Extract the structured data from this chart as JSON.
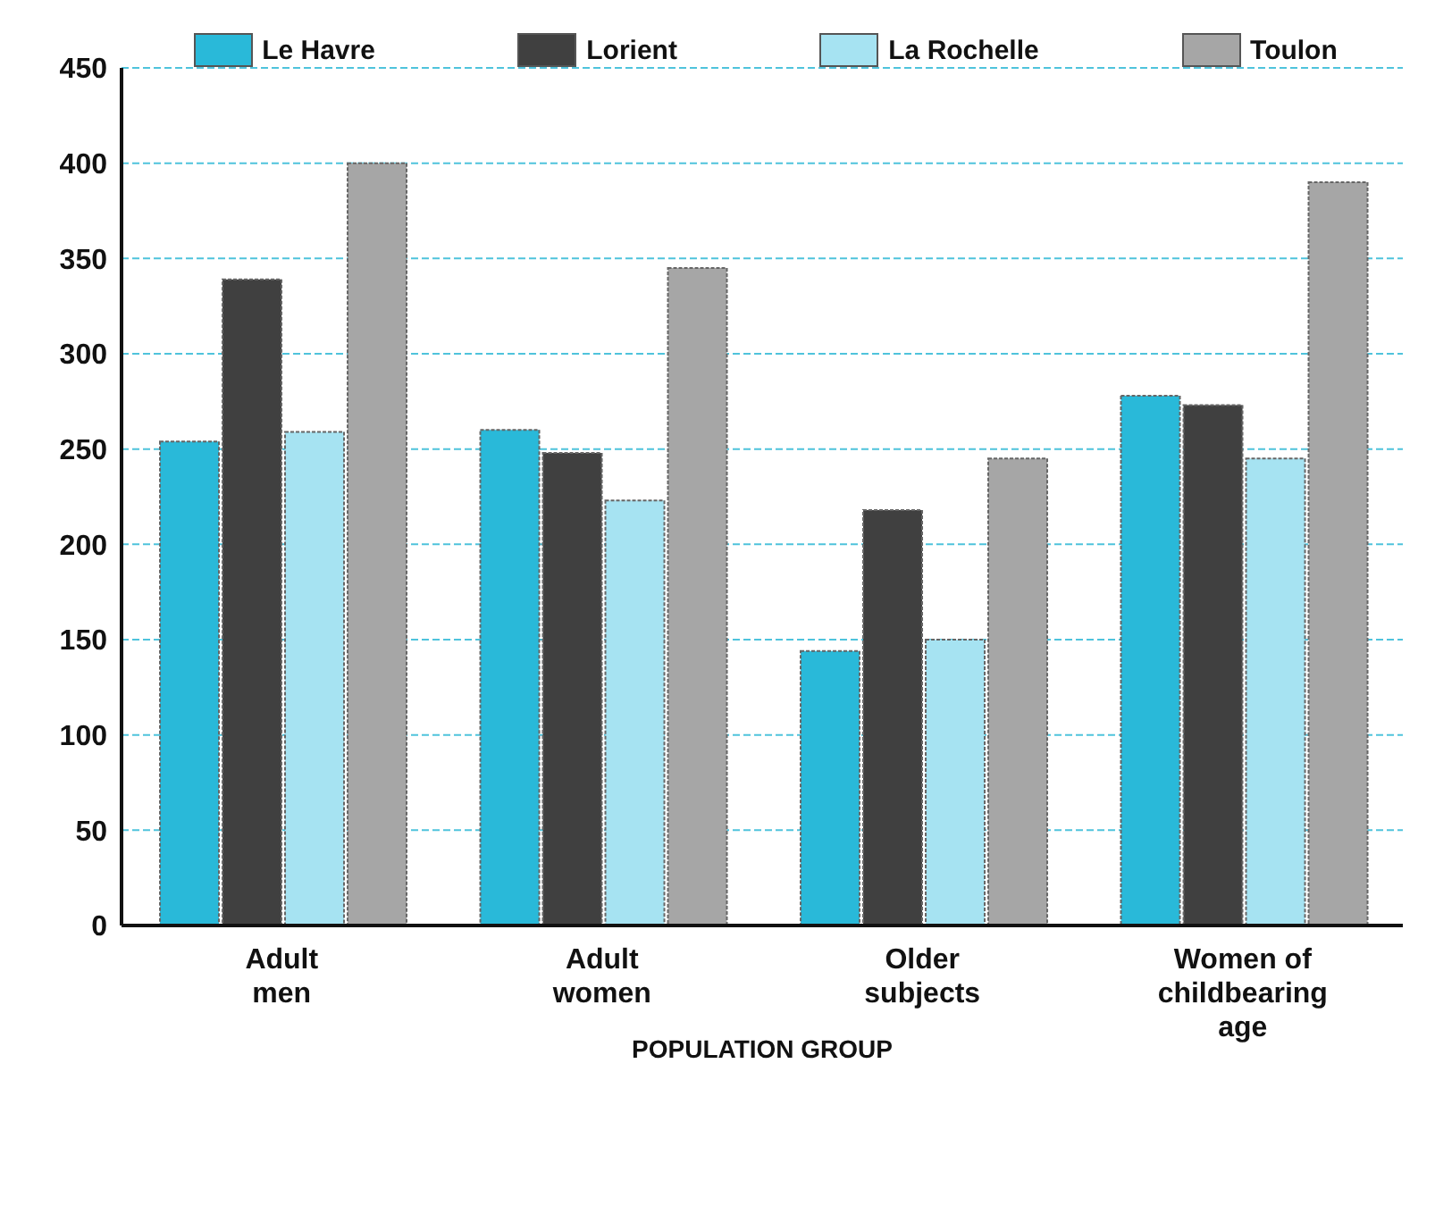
{
  "chart_data": {
    "type": "bar",
    "xlabel": "POPULATION GROUP",
    "categories": [
      "Adult men",
      "Adult women",
      "Older subjects",
      "Women of childbearing age"
    ],
    "series": [
      {
        "name": "Le Havre",
        "color": "#29b9d9",
        "values": [
          254,
          260,
          144,
          278
        ]
      },
      {
        "name": "Lorient",
        "color": "#404040",
        "values": [
          339,
          248,
          218,
          273
        ]
      },
      {
        "name": "La Rochelle",
        "color": "#a6e3f2",
        "values": [
          259,
          223,
          150,
          245
        ]
      },
      {
        "name": "Toulon",
        "color": "#a6a6a6",
        "values": [
          400,
          345,
          245,
          390
        ]
      }
    ],
    "ylim": [
      0,
      450
    ],
    "yticks": [
      0,
      50,
      100,
      150,
      200,
      250,
      300,
      350,
      400,
      450
    ],
    "grid": "y",
    "legend": "top"
  }
}
